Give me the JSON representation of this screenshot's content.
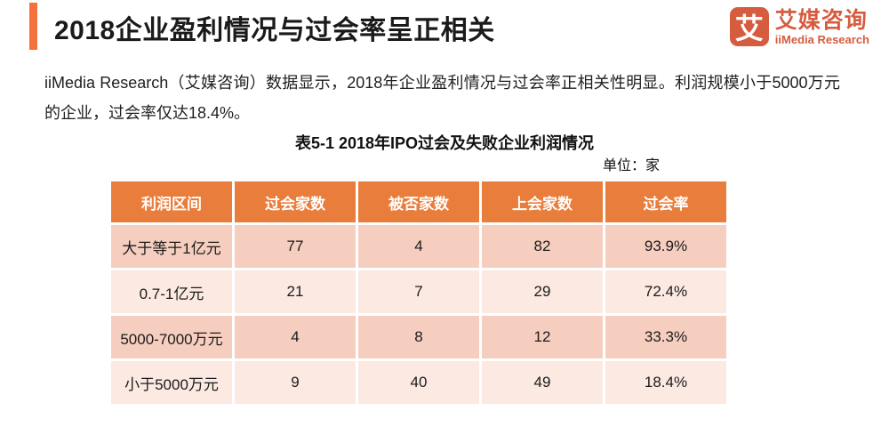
{
  "header": {
    "title": "2018企业盈利情况与过会率呈正相关",
    "accent_color": "#F4713C"
  },
  "logo": {
    "icon_char": "艾",
    "name_cn": "艾媒咨询",
    "name_en": "iiMedia Research",
    "brand_color": "#D65C3F"
  },
  "body": {
    "paragraph": "iiMedia Research（艾媒咨询）数据显示，2018年企业盈利情况与过会率正相关性明显。利润规模小于5000万元的企业，过会率仅达18.4%。"
  },
  "chart_data": {
    "type": "table",
    "title": "表5-1 2018年IPO过会及失败企业利润情况",
    "unit_label": "单位：家",
    "columns": [
      "利润区间",
      "过会家数",
      "被否家数",
      "上会家数",
      "过会率"
    ],
    "rows": [
      [
        "大于等于1亿元",
        77,
        4,
        82,
        "93.9%"
      ],
      [
        "0.7-1亿元",
        21,
        7,
        29,
        "72.4%"
      ],
      [
        "5000-7000万元",
        4,
        8,
        12,
        "33.3%"
      ],
      [
        "小于5000万元",
        9,
        40,
        49,
        "18.4%"
      ]
    ],
    "colors": {
      "header_bg": "#E97D3C",
      "row_odd_bg": "#F6CEBF",
      "row_even_bg": "#FBE9E2"
    }
  }
}
